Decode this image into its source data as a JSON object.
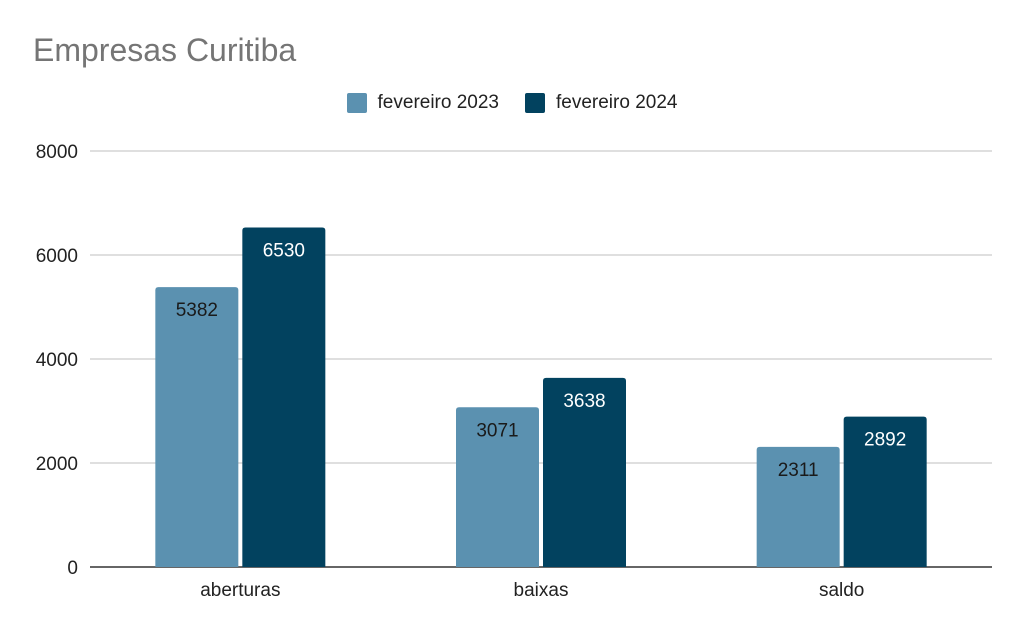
{
  "chart_data": {
    "type": "bar",
    "title": "Empresas Curitiba",
    "xlabel": "",
    "ylabel": "",
    "categories": [
      "aberturas",
      "baixas",
      "saldo"
    ],
    "series": [
      {
        "name": "fevereiro 2023",
        "color": "#5b91b0",
        "values": [
          5382,
          3071,
          2311
        ],
        "label_color": "#1a1a1a"
      },
      {
        "name": "fevereiro 2024",
        "color": "#02425f",
        "values": [
          6530,
          3638,
          2892
        ],
        "label_color": "#ffffff"
      }
    ],
    "ylim": [
      0,
      8000
    ],
    "yticks": [
      "0",
      "2000",
      "4000",
      "6000",
      "8000"
    ],
    "grid": true,
    "legend_position": "top-center"
  }
}
